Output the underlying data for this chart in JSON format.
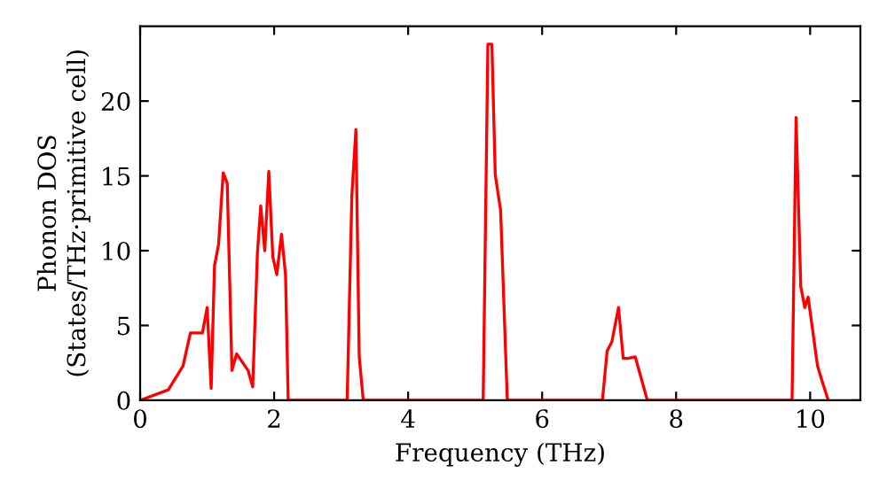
{
  "chart_data": {
    "type": "line",
    "xlabel": "Frequency (THz)",
    "ylabel": "Phonon DOS\n(States/THz·primitive cell)",
    "xlim": [
      0,
      10.75
    ],
    "ylim": [
      0,
      25
    ],
    "xticks": [
      0,
      2,
      4,
      6,
      8,
      10
    ],
    "yticks": [
      0,
      5,
      10,
      15,
      20
    ],
    "grid": false,
    "marker": "none",
    "line_style": "solid",
    "series": [
      {
        "color": "#ff0000",
        "x": [
          0,
          0.42,
          0.64,
          0.75,
          0.93,
          1.0,
          1.06,
          1.11,
          1.17,
          1.24,
          1.3,
          1.37,
          1.44,
          1.61,
          1.68,
          1.75,
          1.8,
          1.86,
          1.92,
          1.98,
          2.04,
          2.11,
          2.17,
          2.21,
          3.09,
          3.16,
          3.22,
          3.27,
          3.33,
          5.12,
          5.19,
          5.25,
          5.3,
          5.38,
          5.48,
          6.9,
          6.97,
          7.04,
          7.14,
          7.21,
          7.28,
          7.39,
          7.57,
          9.73,
          9.79,
          9.86,
          9.92,
          9.97,
          10.11,
          10.17,
          10.27
        ],
        "values": [
          0,
          0.7,
          2.3,
          4.5,
          4.5,
          6.2,
          0.8,
          9.0,
          10.4,
          15.2,
          14.5,
          2.0,
          3.1,
          2.0,
          0.9,
          9.8,
          13.0,
          10.0,
          15.3,
          9.6,
          8.4,
          11.1,
          8.4,
          0,
          0,
          13.7,
          18.1,
          2.9,
          0,
          0,
          23.8,
          23.8,
          15.1,
          12.7,
          0,
          0,
          3.3,
          3.9,
          6.2,
          2.8,
          2.8,
          2.9,
          0,
          0,
          18.9,
          7.6,
          6.2,
          6.9,
          2.3,
          1.4,
          0
        ]
      }
    ]
  }
}
